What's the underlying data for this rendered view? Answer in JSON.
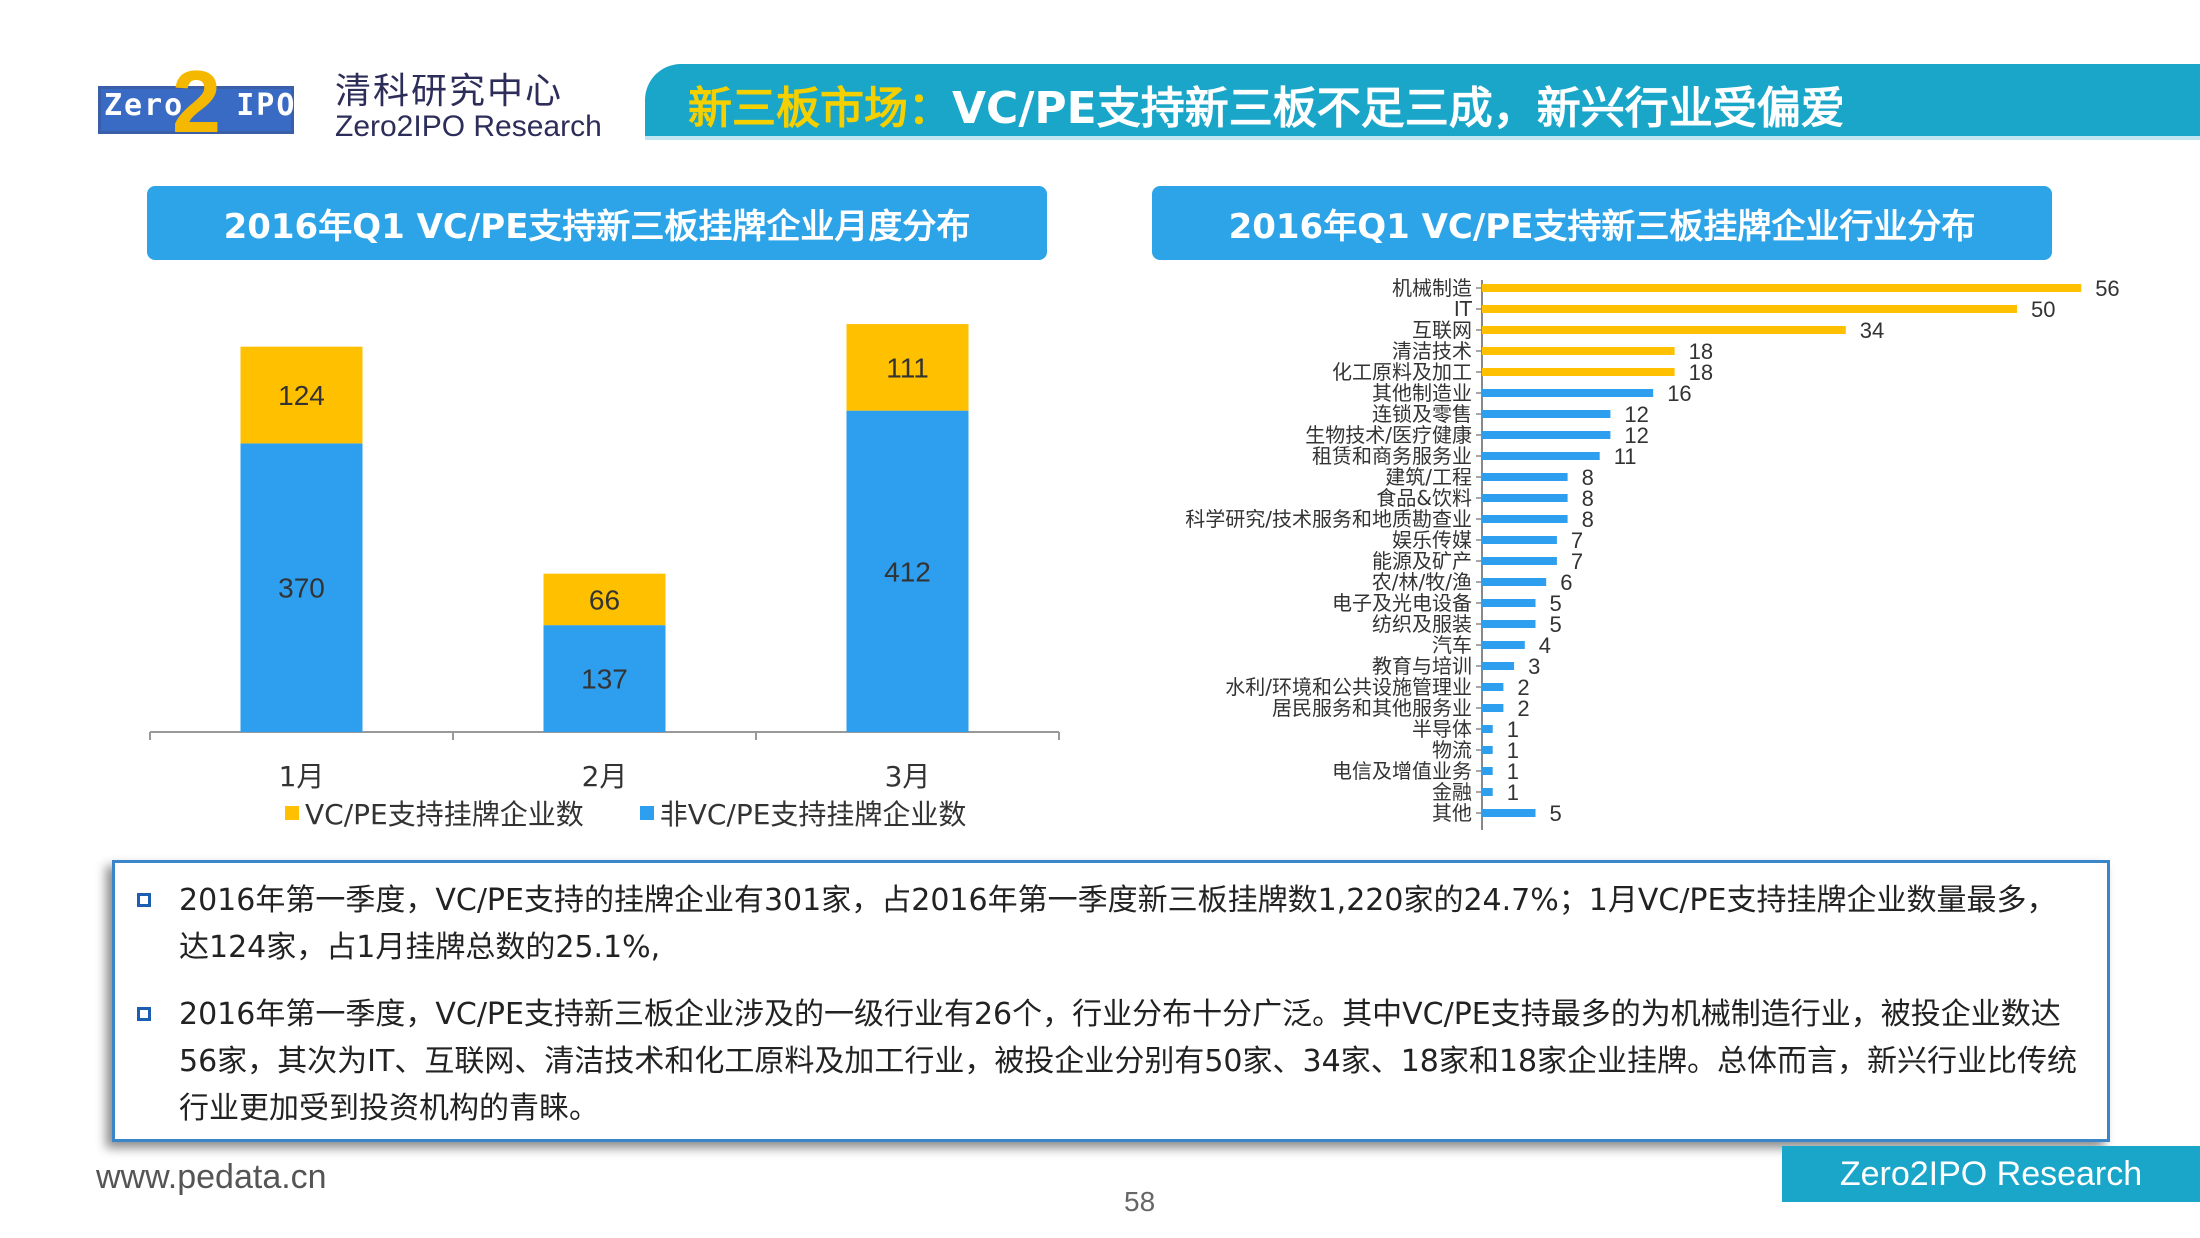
{
  "header": {
    "logo_text": "Zero",
    "logo_text2": "IPO",
    "logo_digit": "2",
    "org_name_cn": "清科研究中心",
    "org_name_en": "Zero2IPO Research",
    "title_highlight": "新三板市场：",
    "title_rest": "VC/PE支持新三板不足三成，新兴行业受偏爱"
  },
  "colors": {
    "vc_pe": "#FFC000",
    "non_vc_pe": "#2E9FEF",
    "accent": "#1AA6C9"
  },
  "chart_data": [
    {
      "type": "bar",
      "stacked": true,
      "title": "2016年Q1 VC/PE支持新三板挂牌企业月度分布",
      "categories": [
        "1月",
        "2月",
        "3月"
      ],
      "series": [
        {
          "name": "非VC/PE支持挂牌企业数",
          "values": [
            370,
            137,
            412
          ]
        },
        {
          "name": "VC/PE支持挂牌企业数",
          "values": [
            124,
            66,
            111
          ]
        }
      ],
      "legend": [
        "VC/PE支持挂牌企业数",
        "非VC/PE支持挂牌企业数"
      ],
      "ylim": [
        0,
        540
      ]
    },
    {
      "type": "bar",
      "orientation": "horizontal",
      "title": "2016年Q1 VC/PE支持新三板挂牌企业行业分布",
      "categories": [
        "机械制造",
        "IT",
        "互联网",
        "清洁技术",
        "化工原料及加工",
        "其他制造业",
        "连锁及零售",
        "生物技术/医疗健康",
        "租赁和商务服务业",
        "建筑/工程",
        "食品&饮料",
        "科学研究/技术服务和地质勘查业",
        "娱乐传媒",
        "能源及矿产",
        "农/林/牧/渔",
        "电子及光电设备",
        "纺织及服装",
        "汽车",
        "教育与培训",
        "水利/环境和公共设施管理业",
        "居民服务和其他服务业",
        "半导体",
        "物流",
        "电信及增值业务",
        "金融",
        "其他"
      ],
      "values": [
        56,
        50,
        34,
        18,
        18,
        16,
        12,
        12,
        11,
        8,
        8,
        8,
        7,
        7,
        6,
        5,
        5,
        4,
        3,
        2,
        2,
        1,
        1,
        1,
        1,
        5
      ],
      "bar_colors": [
        "#FFC000",
        "#FFC000",
        "#FFC000",
        "#FFC000",
        "#FFC000",
        "#2E9FEF",
        "#2E9FEF",
        "#2E9FEF",
        "#2E9FEF",
        "#2E9FEF",
        "#2E9FEF",
        "#2E9FEF",
        "#2E9FEF",
        "#2E9FEF",
        "#2E9FEF",
        "#2E9FEF",
        "#2E9FEF",
        "#2E9FEF",
        "#2E9FEF",
        "#2E9FEF",
        "#2E9FEF",
        "#2E9FEF",
        "#2E9FEF",
        "#2E9FEF",
        "#2E9FEF",
        "#2E9FEF"
      ],
      "xlim": [
        0,
        60
      ]
    }
  ],
  "notes": [
    "2016年第一季度，VC/PE支持的挂牌企业有301家，占2016年第一季度新三板挂牌数1,220家的24.7%；1月VC/PE支持挂牌企业数量最多，达124家，占1月挂牌总数的25.1%,",
    "2016年第一季度，VC/PE支持新三板企业涉及的一级行业有26个，行业分布十分广泛。其中VC/PE支持最多的为机械制造行业，被投企业数达56家，其次为IT、互联网、清洁技术和化工原料及加工行业，被投企业分别有50家、34家、18家和18家企业挂牌。总体而言，新兴行业比传统行业更加受到投资机构的青睐。"
  ],
  "footer": {
    "url": "www.pedata.cn",
    "page": "58",
    "brand": "Zero2IPO Research"
  }
}
